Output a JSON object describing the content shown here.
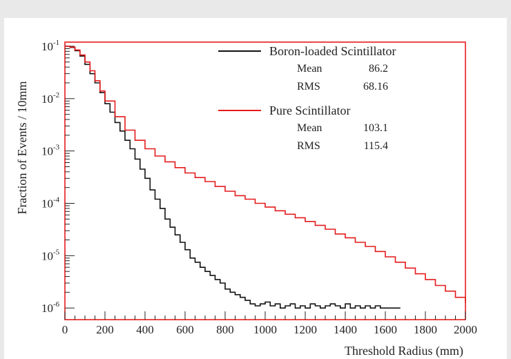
{
  "chart_data": {
    "type": "line",
    "title": "",
    "xlabel": "Threshold Radius (mm)",
    "ylabel": "Fraction of Events / 10mm",
    "xlim": [
      0,
      2000
    ],
    "ylim": [
      6e-07,
      0.12
    ],
    "yscale": "log",
    "x_ticks": [
      "0",
      "200",
      "400",
      "600",
      "800",
      "1000",
      "1200",
      "1400",
      "1600",
      "1800",
      "2000"
    ],
    "y_ticks": [
      {
        "base": "10",
        "exp": "-1",
        "value": 0.1
      },
      {
        "base": "10",
        "exp": "-2",
        "value": 0.01
      },
      {
        "base": "10",
        "exp": "-3",
        "value": 0.001
      },
      {
        "base": "10",
        "exp": "-4",
        "value": 0.0001
      },
      {
        "base": "10",
        "exp": "-5",
        "value": 1e-05
      },
      {
        "base": "10",
        "exp": "-6",
        "value": 1e-06
      }
    ],
    "legend_position": "top-right",
    "series": [
      {
        "name": "Boron-loaded Scintillator",
        "color": "#111111",
        "stats": [
          {
            "label": "Mean",
            "value": "86.2"
          },
          {
            "label": "RMS",
            "value": "68.16"
          }
        ],
        "x": [
          0,
          25,
          50,
          75,
          100,
          125,
          150,
          175,
          200,
          225,
          250,
          275,
          300,
          325,
          350,
          375,
          400,
          425,
          450,
          475,
          500,
          525,
          550,
          575,
          600,
          625,
          650,
          675,
          700,
          725,
          750,
          775,
          800,
          825,
          850,
          875,
          900,
          925,
          950,
          975,
          1000,
          1025,
          1050,
          1075,
          1100,
          1125,
          1150,
          1175,
          1200,
          1225,
          1250,
          1275,
          1300,
          1325,
          1350,
          1375,
          1400,
          1425,
          1450,
          1475,
          1500,
          1525,
          1550,
          1575,
          1600,
          1625,
          1650
        ],
        "y": [
          0.1,
          0.095,
          0.082,
          0.065,
          0.045,
          0.03,
          0.02,
          0.013,
          0.008,
          0.0055,
          0.0035,
          0.0024,
          0.0016,
          0.0011,
          0.0007,
          0.00045,
          0.0003,
          0.00018,
          0.00012,
          8e-05,
          5e-05,
          3.5e-05,
          2.5e-05,
          1.8e-05,
          1.3e-05,
          9e-06,
          7.5e-06,
          6e-06,
          5e-06,
          4.2e-06,
          3.5e-06,
          3e-06,
          2.3e-06,
          2e-06,
          1.8e-06,
          1.6e-06,
          1.4e-06,
          1.2e-06,
          1.1e-06,
          1.2e-06,
          1.3e-06,
          1.1e-06,
          1.2e-06,
          1e-06,
          1.1e-06,
          1.2e-06,
          1e-06,
          1.1e-06,
          1e-06,
          1.2e-06,
          1.1e-06,
          1e-06,
          1.1e-06,
          1.2e-06,
          1.1e-06,
          1e-06,
          1.2e-06,
          1e-06,
          1.1e-06,
          1e-06,
          1.1e-06,
          1e-06,
          1.1e-06,
          1e-06,
          1e-06,
          1e-06,
          1e-06
        ]
      },
      {
        "name": "Pure Scintillator",
        "color": "#e41a1c",
        "stats": [
          {
            "label": "Mean",
            "value": "103.1"
          },
          {
            "label": "RMS",
            "value": "115.4"
          }
        ],
        "x": [
          0,
          25,
          50,
          75,
          100,
          125,
          150,
          175,
          200,
          250,
          300,
          350,
          400,
          450,
          500,
          550,
          600,
          650,
          700,
          750,
          800,
          850,
          900,
          950,
          1000,
          1050,
          1100,
          1150,
          1200,
          1250,
          1300,
          1350,
          1400,
          1450,
          1500,
          1550,
          1600,
          1650,
          1700,
          1750,
          1800,
          1850,
          1900,
          1950,
          2000
        ],
        "y": [
          0.1,
          0.096,
          0.085,
          0.068,
          0.05,
          0.034,
          0.022,
          0.014,
          0.009,
          0.0045,
          0.0025,
          0.0016,
          0.0011,
          0.0008,
          0.00062,
          0.00048,
          0.00038,
          0.00031,
          0.00026,
          0.00021,
          0.00017,
          0.00014,
          0.00012,
          0.0001,
          8.5e-05,
          7.2e-05,
          6.2e-05,
          5.3e-05,
          4.5e-05,
          3.8e-05,
          3.2e-05,
          2.6e-05,
          2.2e-05,
          1.8e-05,
          1.5e-05,
          1.2e-05,
          9.5e-06,
          7.5e-06,
          5.8e-06,
          4.5e-06,
          3.5e-06,
          2.7e-06,
          2.1e-06,
          1.6e-06,
          1.3e-06
        ]
      }
    ]
  }
}
